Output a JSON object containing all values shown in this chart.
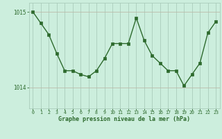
{
  "hours": [
    0,
    1,
    2,
    3,
    4,
    5,
    6,
    7,
    8,
    9,
    10,
    11,
    12,
    13,
    14,
    15,
    16,
    17,
    18,
    19,
    20,
    21,
    22,
    23
  ],
  "pressure": [
    1015.0,
    1014.85,
    1014.7,
    1014.45,
    1014.22,
    1014.22,
    1014.17,
    1014.14,
    1014.22,
    1014.38,
    1014.58,
    1014.58,
    1014.58,
    1014.92,
    1014.62,
    1014.42,
    1014.32,
    1014.22,
    1014.22,
    1014.02,
    1014.17,
    1014.32,
    1014.72,
    1014.87
  ],
  "line_color": "#2d6a2d",
  "marker_color": "#2d6a2d",
  "bg_color": "#cceedd",
  "grid_color_v": "#aaccbb",
  "grid_color_h": "#bbbbaa",
  "axis_label_color": "#2d6a2d",
  "xlabel": "Graphe pression niveau de la mer (hPa)",
  "ytick_labels": [
    "1014",
    "1015"
  ],
  "ytick_values": [
    1014.0,
    1015.0
  ],
  "ylim": [
    1013.72,
    1015.12
  ],
  "xlim": [
    -0.5,
    23.5
  ]
}
